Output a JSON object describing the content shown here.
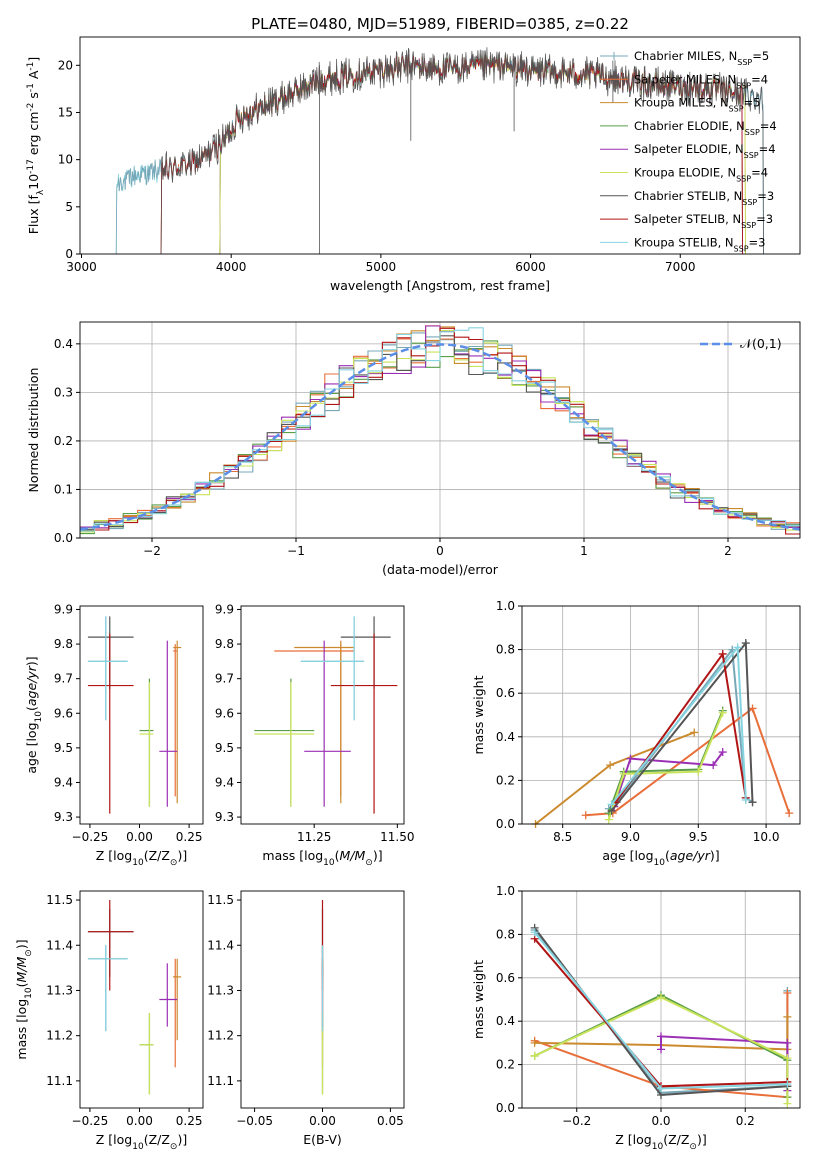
{
  "figure": {
    "title": "PLATE=0480, MJD=51989, FIBERID=0385, z=0.22"
  },
  "series_styles": [
    {
      "name": "Chabrier MILES, N$_{SSP}$=5",
      "color": "#78a8b8"
    },
    {
      "name": "Salpeter MILES, N$_{SSP}$=4",
      "color": "#e86e3a"
    },
    {
      "name": "Kroupa MILES, N$_{SSP}$=5",
      "color": "#cc8a2e"
    },
    {
      "name": "Chabrier ELODIE, N$_{SSP}$=4",
      "color": "#5a9e4a"
    },
    {
      "name": "Salpeter ELODIE, N$_{SSP}$=4",
      "color": "#9a2fb4"
    },
    {
      "name": "Kroupa ELODIE, N$_{SSP}$=4",
      "color": "#c9e35a"
    },
    {
      "name": "Chabrier STELIB, N$_{SSP}$=3",
      "color": "#555555"
    },
    {
      "name": "Salpeter STELIB, N$_{SSP}$=3",
      "color": "#b01515"
    },
    {
      "name": "Kroupa STELIB, N$_{SSP}$=3",
      "color": "#86d4e0"
    }
  ],
  "chart_data": [
    {
      "type": "line",
      "title": "PLATE=0480, MJD=51989, FIBERID=0385, z=0.22",
      "xlabel": "wavelength [Angstrom, rest frame]",
      "ylabel": "Flux [f$_\\lambda$10$^{-17}$ erg cm$^{-2}$ s$^{-1}$ A$^{-1}$]",
      "xlim": [
        2990,
        7800
      ],
      "ylim": [
        0,
        23
      ],
      "xticks": [
        3000,
        4000,
        5000,
        6000,
        7000
      ],
      "yticks": [
        0,
        5,
        10,
        15,
        20
      ],
      "grid": false,
      "legend": [
        "Chabrier MILES, N$_{SSP}$=5",
        "Salpeter MILES, N$_{SSP}$=4",
        "Kroupa MILES, N$_{SSP}$=5",
        "Chabrier ELODIE, N$_{SSP}$=4",
        "Salpeter ELODIE, N$_{SSP}$=4",
        "Kroupa ELODIE, N$_{SSP}$=4",
        "Chabrier STELIB, N$_{SSP}$=3",
        "Salpeter STELIB, N$_{SSP}$=3",
        "Kroupa STELIB, N$_{SSP}$=3"
      ],
      "legend_position": "upper right",
      "continuum_points": [
        [
          3230,
          7.5
        ],
        [
          3400,
          8.5
        ],
        [
          3600,
          9.0
        ],
        [
          3800,
          10.0
        ],
        [
          3950,
          12.0
        ],
        [
          4050,
          14.5
        ],
        [
          4200,
          15.5
        ],
        [
          4400,
          17.0
        ],
        [
          4600,
          18.5
        ],
        [
          4800,
          19.0
        ],
        [
          5000,
          19.5
        ],
        [
          5200,
          20.0
        ],
        [
          5400,
          19.5
        ],
        [
          5600,
          19.8
        ],
        [
          5800,
          20.0
        ],
        [
          6000,
          19.5
        ],
        [
          6200,
          19.2
        ],
        [
          6400,
          19.0
        ],
        [
          6600,
          18.5
        ],
        [
          6800,
          18.0
        ],
        [
          7000,
          17.8
        ],
        [
          7200,
          17.5
        ],
        [
          7400,
          17.0
        ],
        [
          7560,
          16.5
        ]
      ],
      "series_ranges": [
        [
          3230,
          7560
        ],
        [
          3530,
          7420
        ],
        [
          3920,
          7440
        ],
        [
          3920,
          7420
        ],
        [
          3920,
          7420
        ],
        [
          3920,
          7440
        ],
        [
          3530,
          7560
        ],
        [
          3530,
          7420
        ],
        [
          3230,
          7560
        ]
      ]
    },
    {
      "type": "bar",
      "xlabel": "(data-model)/error",
      "ylabel": "Normed distribution",
      "xlim": [
        -2.5,
        2.5
      ],
      "ylim": [
        0,
        0.445
      ],
      "xticks": [
        -2,
        -1,
        0,
        1,
        2
      ],
      "yticks": [
        0.0,
        0.1,
        0.2,
        0.3,
        0.4
      ],
      "grid": true,
      "bin_width": 0.1,
      "legend": [
        "$\\mathcal{N}(0,1)$"
      ],
      "legend_position": "upper right",
      "reference_curve": "normal(0,1)"
    },
    {
      "type": "scatter",
      "xlabel": "Z [log$_{10}$(Z/Z$_\\odot$)]",
      "ylabel": "age  [log$_{10}$($age/yr$)]",
      "xlim": [
        -0.3,
        0.32
      ],
      "ylim": [
        9.28,
        9.91
      ],
      "xticks": [
        -0.25,
        0.0,
        0.25
      ],
      "yticks": [
        9.3,
        9.4,
        9.5,
        9.6,
        9.7,
        9.8,
        9.9
      ],
      "points": [
        {
          "x": -0.17,
          "xerr": [
            0.09,
            0.11
          ],
          "y": 9.75,
          "yerr": [
            0.17,
            0.13
          ]
        },
        {
          "x": 0.18,
          "xerr": [
            0.01,
            0.01
          ],
          "y": 9.78,
          "yerr": [
            0.42,
            0.02
          ]
        },
        {
          "x": 0.19,
          "xerr": [
            0.02,
            0.02
          ],
          "y": 9.79,
          "yerr": [
            0.45,
            0.02
          ]
        },
        {
          "x": 0.05,
          "xerr": [
            0.05,
            0.02
          ],
          "y": 9.55,
          "yerr": [
            0.22,
            0.15
          ]
        },
        {
          "x": 0.14,
          "xerr": [
            0.04,
            0.05
          ],
          "y": 9.49,
          "yerr": [
            0.16,
            0.32
          ]
        },
        {
          "x": 0.05,
          "xerr": [
            0.05,
            0.02
          ],
          "y": 9.54,
          "yerr": [
            0.21,
            0.15
          ]
        },
        {
          "x": -0.15,
          "xerr": [
            0.11,
            0.12
          ],
          "y": 9.82,
          "yerr": [
            0.15,
            0.06
          ]
        },
        {
          "x": -0.15,
          "xerr": [
            0.11,
            0.12
          ],
          "y": 9.68,
          "yerr": [
            0.37,
            0.15
          ]
        },
        {
          "x": -0.17,
          "xerr": [
            0.09,
            0.11
          ],
          "y": 9.75,
          "yerr": [
            0.17,
            0.13
          ]
        }
      ]
    },
    {
      "type": "scatter",
      "xlabel": "mass [log$_{10}$($M/M_\\odot$)]",
      "ylabel": "",
      "xlim": [
        11.03,
        11.52
      ],
      "ylim": [
        9.28,
        9.91
      ],
      "xticks": [
        11.25,
        11.5
      ],
      "yticks": [
        9.3,
        9.4,
        9.5,
        9.6,
        9.7,
        9.8,
        9.9
      ],
      "points": [
        {
          "x": 11.37,
          "xerr": [
            0.16,
            0.03
          ],
          "y": 9.75,
          "yerr": [
            0.17,
            0.13
          ]
        },
        {
          "x": 11.33,
          "xerr": [
            0.2,
            0.04
          ],
          "y": 9.78,
          "yerr": [
            0.42,
            0.02
          ]
        },
        {
          "x": 11.33,
          "xerr": [
            0.14,
            0.04
          ],
          "y": 9.79,
          "yerr": [
            0.45,
            0.02
          ]
        },
        {
          "x": 11.18,
          "xerr": [
            0.11,
            0.07
          ],
          "y": 9.55,
          "yerr": [
            0.22,
            0.15
          ]
        },
        {
          "x": 11.28,
          "xerr": [
            0.06,
            0.08
          ],
          "y": 9.49,
          "yerr": [
            0.16,
            0.32
          ]
        },
        {
          "x": 11.18,
          "xerr": [
            0.11,
            0.07
          ],
          "y": 9.54,
          "yerr": [
            0.21,
            0.15
          ]
        },
        {
          "x": 11.43,
          "xerr": [
            0.1,
            0.05
          ],
          "y": 9.82,
          "yerr": [
            0.15,
            0.06
          ]
        },
        {
          "x": 11.43,
          "xerr": [
            0.13,
            0.07
          ],
          "y": 9.68,
          "yerr": [
            0.37,
            0.15
          ]
        },
        {
          "x": 11.37,
          "xerr": [
            0.16,
            0.03
          ],
          "y": 9.75,
          "yerr": [
            0.17,
            0.13
          ]
        }
      ]
    },
    {
      "type": "line",
      "xlabel": "age  [log$_{10}$($age/yr$)]",
      "ylabel": "mass weight",
      "xlim": [
        8.2,
        10.25
      ],
      "ylim": [
        0,
        1.0
      ],
      "xticks": [
        8.5,
        9.0,
        9.5,
        10.0
      ],
      "yticks": [
        0.0,
        0.2,
        0.4,
        0.6,
        0.8,
        1.0
      ],
      "grid": true,
      "series": [
        {
          "name": "Chabrier MILES, N$_{SSP}$=5",
          "x": [
            8.84,
            8.9,
            9.75,
            9.85,
            9.9
          ],
          "y": [
            0.07,
            0.1,
            0.8,
            0.12,
            0.1
          ]
        },
        {
          "name": "Salpeter MILES, N$_{SSP}$=4",
          "x": [
            8.67,
            8.87,
            9.9,
            10.17
          ],
          "y": [
            0.04,
            0.05,
            0.53,
            0.05
          ]
        },
        {
          "name": "Kroupa MILES, N$_{SSP}$=5",
          "x": [
            8.3,
            8.85,
            9.47
          ],
          "y": [
            0.0,
            0.27,
            0.42
          ]
        },
        {
          "name": "Chabrier ELODIE, N$_{SSP}$=4",
          "x": [
            8.84,
            8.95,
            9.5,
            9.68
          ],
          "y": [
            0.05,
            0.24,
            0.25,
            0.52
          ]
        },
        {
          "name": "Salpeter ELODIE, N$_{SSP}$=4",
          "x": [
            8.88,
            9.0,
            9.61,
            9.68
          ],
          "y": [
            0.08,
            0.3,
            0.27,
            0.33
          ]
        },
        {
          "name": "Kroupa ELODIE, N$_{SSP}$=4",
          "x": [
            8.84,
            8.95,
            9.5,
            9.68
          ],
          "y": [
            0.02,
            0.23,
            0.24,
            0.51
          ]
        },
        {
          "name": "Chabrier STELIB, N$_{SSP}$=3",
          "x": [
            8.86,
            9.85,
            9.9
          ],
          "y": [
            0.06,
            0.83,
            0.1
          ]
        },
        {
          "name": "Salpeter STELIB, N$_{SSP}$=3",
          "x": [
            8.89,
            9.68,
            9.85
          ],
          "y": [
            0.1,
            0.78,
            0.12
          ]
        },
        {
          "name": "Kroupa STELIB, N$_{SSP}$=3",
          "x": [
            8.86,
            9.79,
            9.85
          ],
          "y": [
            0.09,
            0.81,
            0.11
          ]
        }
      ]
    },
    {
      "type": "scatter",
      "xlabel": "Z [log$_{10}$(Z/Z$_\\odot$)]",
      "ylabel": "mass [log$_{10}$($M/M_\\odot$)]",
      "xlim": [
        -0.3,
        0.32
      ],
      "ylim": [
        11.04,
        11.52
      ],
      "xticks": [
        -0.25,
        0.0,
        0.25
      ],
      "yticks": [
        11.1,
        11.2,
        11.3,
        11.4,
        11.5
      ],
      "points": [
        {
          "x": -0.17,
          "xerr": [
            0.09,
            0.11
          ],
          "y": 11.37,
          "yerr": [
            0.16,
            0.03
          ]
        },
        {
          "x": 0.18,
          "xerr": [
            0.01,
            0.01
          ],
          "y": 11.33,
          "yerr": [
            0.2,
            0.04
          ]
        },
        {
          "x": 0.19,
          "xerr": [
            0.02,
            0.02
          ],
          "y": 11.33,
          "yerr": [
            0.14,
            0.04
          ]
        },
        {
          "x": 0.05,
          "xerr": [
            0.05,
            0.02
          ],
          "y": 11.18,
          "yerr": [
            0.11,
            0.07
          ]
        },
        {
          "x": 0.14,
          "xerr": [
            0.04,
            0.05
          ],
          "y": 11.28,
          "yerr": [
            0.06,
            0.08
          ]
        },
        {
          "x": 0.05,
          "xerr": [
            0.05,
            0.02
          ],
          "y": 11.18,
          "yerr": [
            0.11,
            0.07
          ]
        },
        {
          "x": -0.15,
          "xerr": [
            0.11,
            0.12
          ],
          "y": 11.43,
          "yerr": [
            0.1,
            0.05
          ]
        },
        {
          "x": -0.15,
          "xerr": [
            0.11,
            0.12
          ],
          "y": 11.43,
          "yerr": [
            0.13,
            0.07
          ]
        },
        {
          "x": -0.17,
          "xerr": [
            0.09,
            0.11
          ],
          "y": 11.37,
          "yerr": [
            0.16,
            0.03
          ]
        }
      ]
    },
    {
      "type": "scatter",
      "xlabel": "E(B-V)",
      "ylabel": "",
      "xlim": [
        -0.06,
        0.06
      ],
      "ylim": [
        11.04,
        11.52
      ],
      "xticks": [
        -0.05,
        0.0,
        0.05
      ],
      "yticks": [
        11.1,
        11.2,
        11.3,
        11.4,
        11.5
      ],
      "points": [
        {
          "x": 0.0,
          "y": 11.37,
          "yerr": [
            0.16,
            0.03
          ]
        },
        {
          "x": 0.0,
          "y": 11.33,
          "yerr": [
            0.2,
            0.04
          ]
        },
        {
          "x": 0.0,
          "y": 11.33,
          "yerr": [
            0.14,
            0.04
          ]
        },
        {
          "x": 0.0,
          "y": 11.18,
          "yerr": [
            0.11,
            0.07
          ]
        },
        {
          "x": 0.0,
          "y": 11.28,
          "yerr": [
            0.06,
            0.08
          ]
        },
        {
          "x": 0.0,
          "y": 11.18,
          "yerr": [
            0.11,
            0.07
          ]
        },
        {
          "x": 0.0,
          "y": 11.43,
          "yerr": [
            0.1,
            0.05
          ]
        },
        {
          "x": 0.0,
          "y": 11.43,
          "yerr": [
            0.13,
            0.07
          ]
        },
        {
          "x": 0.0,
          "y": 11.37,
          "yerr": [
            0.16,
            0.03
          ]
        }
      ]
    },
    {
      "type": "line",
      "xlabel": "Z [log$_{10}$(Z/Z$_\\odot$)]",
      "ylabel": "mass weight",
      "xlim": [
        -0.33,
        0.33
      ],
      "ylim": [
        0,
        1.0
      ],
      "xticks": [
        -0.2,
        0.0,
        0.2
      ],
      "yticks": [
        0.0,
        0.2,
        0.4,
        0.6,
        0.8,
        1.0
      ],
      "grid": true,
      "series": [
        {
          "name": "Chabrier MILES, N$_{SSP}$=5",
          "x": [
            -0.3,
            0.0,
            0.3,
            0.3
          ],
          "y": [
            0.82,
            0.07,
            0.1,
            0.54
          ]
        },
        {
          "name": "Salpeter MILES, N$_{SSP}$=4",
          "x": [
            -0.3,
            0.0,
            0.3,
            0.3
          ],
          "y": [
            0.31,
            0.1,
            0.05,
            0.53
          ]
        },
        {
          "name": "Kroupa MILES, N$_{SSP}$=5",
          "x": [
            -0.3,
            0.0,
            0.3,
            0.3
          ],
          "y": [
            0.3,
            0.29,
            0.27,
            0.42
          ]
        },
        {
          "name": "Chabrier ELODIE, N$_{SSP}$=4",
          "x": [
            -0.3,
            0.0,
            0.3,
            0.3
          ],
          "y": [
            0.24,
            0.52,
            0.22,
            0.05
          ]
        },
        {
          "name": "Salpeter ELODIE, N$_{SSP}$=4",
          "x": [
            0.0,
            0.0,
            0.3,
            0.3
          ],
          "y": [
            0.27,
            0.33,
            0.3,
            0.08
          ]
        },
        {
          "name": "Kroupa ELODIE, N$_{SSP}$=4",
          "x": [
            -0.3,
            0.0,
            0.3,
            0.3
          ],
          "y": [
            0.24,
            0.51,
            0.23,
            0.02
          ]
        },
        {
          "name": "Chabrier STELIB, N$_{SSP}$=3",
          "x": [
            -0.3,
            0.0,
            0.3
          ],
          "y": [
            0.83,
            0.06,
            0.1
          ]
        },
        {
          "name": "Salpeter STELIB, N$_{SSP}$=3",
          "x": [
            -0.3,
            0.0,
            0.3
          ],
          "y": [
            0.78,
            0.1,
            0.12
          ]
        },
        {
          "name": "Kroupa STELIB, N$_{SSP}$=3",
          "x": [
            -0.3,
            0.0,
            0.3
          ],
          "y": [
            0.81,
            0.09,
            0.11
          ]
        }
      ]
    }
  ]
}
